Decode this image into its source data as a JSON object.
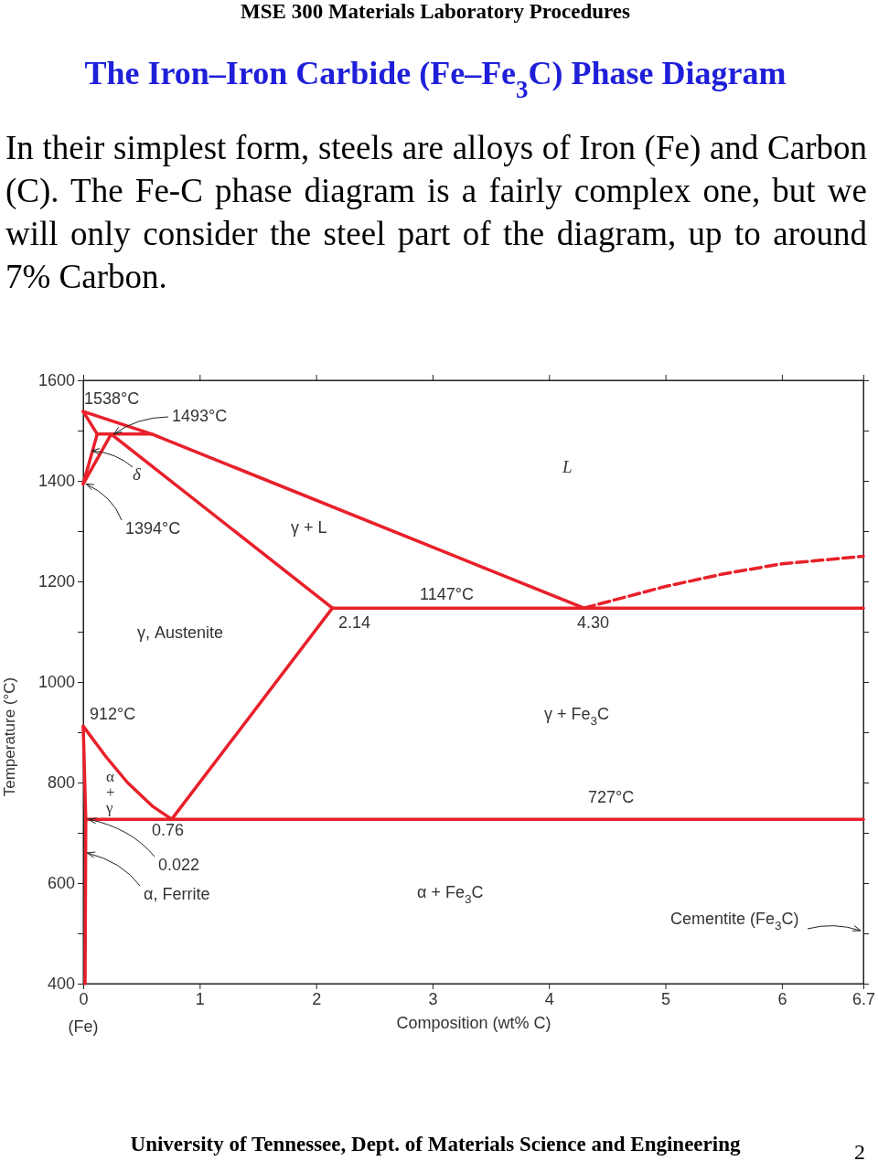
{
  "chart_data": {
    "type": "line",
    "title": "The Iron–Iron Carbide (Fe–Fe$_{3}$C) Phase Diagram",
    "subtitle": "In their simplest form, steels are alloys of Iron (Fe) and Carbon (C).  The Fe-C phase diagram is a fairly complex one, but we will only consider the steel part of the diagram, up to around 7% Carbon.",
    "xlabel": "Composition (wt% C)",
    "ylabel": "Temperature (°C)",
    "xlim": [
      0,
      6.7
    ],
    "ylim": [
      400,
      1600
    ],
    "xticks": [
      0,
      1,
      2,
      3,
      4,
      5,
      6,
      6.7
    ],
    "yticks": [
      400,
      {
        "value": 500,
        "label": null
      },
      600,
      {
        "value": 700,
        "label": null
      },
      800,
      {
        "value": 900,
        "label": null
      },
      1000,
      {
        "value": 1100,
        "label": null
      },
      1200,
      {
        "value": 1300,
        "label": null
      },
      1400,
      {
        "value": 1500,
        "label": null
      },
      1600
    ],
    "grid": false,
    "marker": "none",
    "line_style": "solid",
    "series": [
      {
        "color": "#e8202a",
        "x": [
          0,
          0.59,
          4.3
        ],
        "values": [
          1538,
          1493,
          1147
        ]
      },
      {
        "color": "#e8202a",
        "x": [
          0,
          0.12,
          0
        ],
        "values": [
          1538,
          1493,
          1394
        ]
      },
      {
        "color": "#e8202a",
        "x": [
          0.12,
          0.59
        ],
        "values": [
          1493,
          1493
        ]
      },
      {
        "color": "#e8202a",
        "x": [
          0,
          0.24,
          2.14
        ],
        "values": [
          1394,
          1493,
          1147
        ]
      },
      {
        "color": "#e8202a",
        "x": [
          2.14,
          6.7
        ],
        "values": [
          1147,
          1147
        ]
      },
      {
        "color": "#e8202a",
        "x": [
          4.3,
          5,
          5.5,
          6,
          6.7
        ],
        "values": [
          1147,
          1190,
          1215,
          1235,
          1250
        ],
        "line_style": "dashed"
      },
      {
        "color": "#e8202a",
        "x": [
          2.14,
          0.76
        ],
        "values": [
          1147,
          727
        ]
      },
      {
        "color": "#e8202a",
        "x": [
          0,
          0.2,
          0.38,
          0.6,
          0.76
        ],
        "values": [
          912,
          850,
          800,
          752,
          727
        ]
      },
      {
        "color": "#e8202a",
        "x": [
          0,
          0.022,
          0.016
        ],
        "values": [
          912,
          727,
          400
        ]
      },
      {
        "color": "#e8202a",
        "x": [
          0.022,
          6.7
        ],
        "values": [
          727,
          727
        ]
      }
    ],
    "annotations": [
      "MSE 300 Materials Laboratory Procedures",
      "University of Tennessee, Dept. of Materials Science and Engineering",
      "2",
      "(Fe)",
      "1538°C",
      {
        "text": "1493°C",
        "x": 0.24,
        "y": 1493
      },
      {
        "text": "δ",
        "x": 0.05,
        "y": 1460
      },
      {
        "text": "1394°C",
        "x": 0,
        "y": 1394
      },
      "γ + L",
      "L",
      "1147°C",
      "2.14",
      "4.30",
      "γ, Austenite",
      "912°C",
      "γ + Fe$_{3}$C",
      "α + γ",
      "727°C",
      "0.76",
      {
        "text": "0.022",
        "x": 0.022,
        "y": 727
      },
      {
        "text": "α, Ferrite",
        "x": 0.01,
        "y": 660
      },
      "α + Fe$_{3}$C",
      "Cementite (Fe$_{3}$C)"
    ]
  }
}
